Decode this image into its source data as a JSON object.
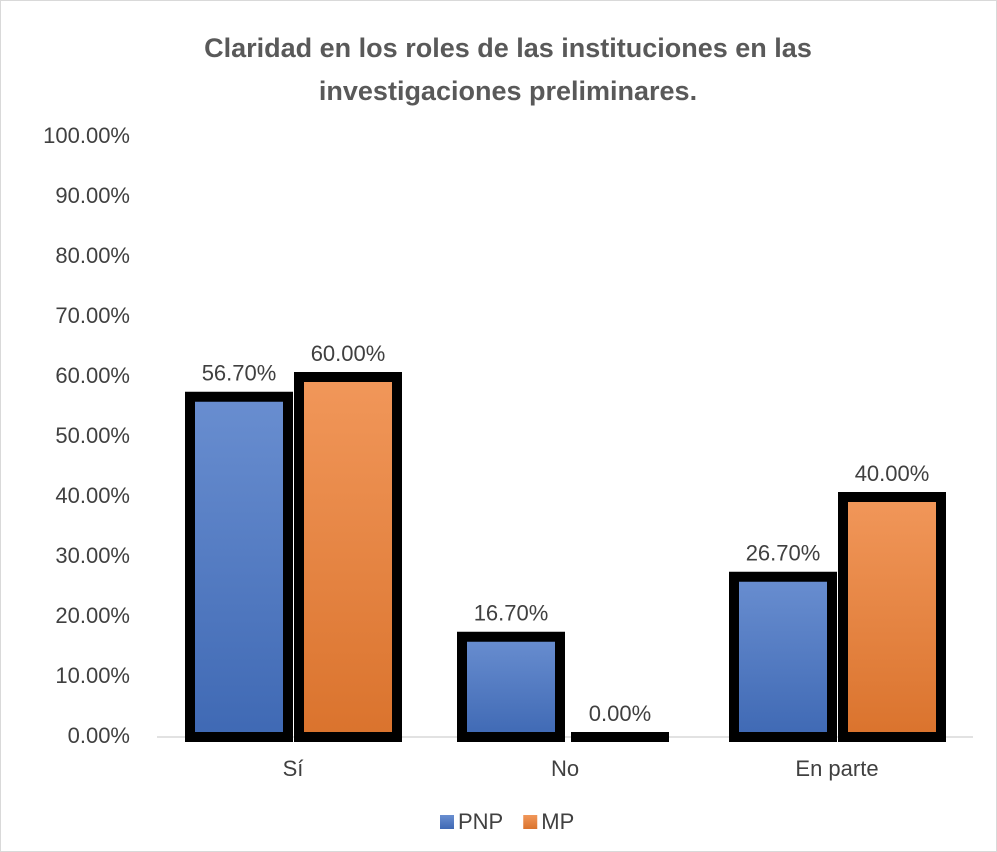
{
  "chart_data": {
    "type": "bar",
    "title": "Claridad en los roles de las instituciones en las investigaciones preliminares.",
    "title_lines": [
      "Claridad en los roles de las instituciones en las",
      "investigaciones preliminares."
    ],
    "categories": [
      "Sí",
      "No",
      "En parte"
    ],
    "series": [
      {
        "name": "PNP",
        "color": "#4472c4",
        "values": [
          56.7,
          16.7,
          26.7
        ],
        "value_labels": [
          "56.70%",
          "16.70%",
          "26.70%"
        ]
      },
      {
        "name": "MP",
        "color": "#ed7d31",
        "values": [
          60,
          0,
          40
        ],
        "value_labels": [
          "60.00%",
          "0.00%",
          "40.00%"
        ]
      }
    ],
    "ylim": [
      0,
      100
    ],
    "yticks": [
      {
        "value": 0,
        "label": "0.00%"
      },
      {
        "value": 10,
        "label": "10.00%"
      },
      {
        "value": 20,
        "label": "20.00%"
      },
      {
        "value": 30,
        "label": "30.00%"
      },
      {
        "value": 40,
        "label": "40.00%"
      },
      {
        "value": 50,
        "label": "50.00%"
      },
      {
        "value": 60,
        "label": "60.00%"
      },
      {
        "value": 70,
        "label": "70.00%"
      },
      {
        "value": 80,
        "label": "80.00%"
      },
      {
        "value": 90,
        "label": "90.00%"
      },
      {
        "value": 100,
        "label": "100.00%"
      }
    ],
    "grid": false,
    "legend": "bottom"
  }
}
